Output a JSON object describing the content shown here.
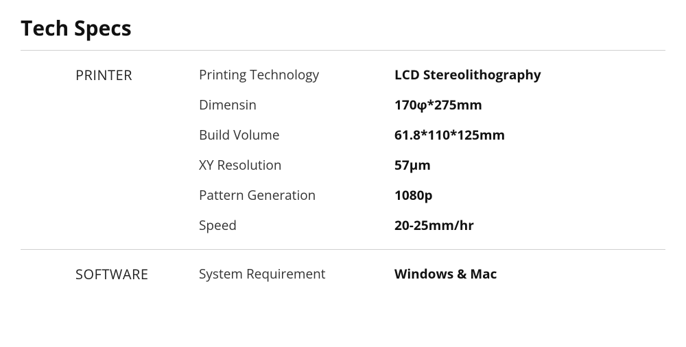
{
  "title": "Tech Specs",
  "colors": {
    "background": "#ffffff",
    "text": "#1a1a1a",
    "divider": "#d0d0d0",
    "heading": "#111111",
    "label": "#333333",
    "value": "#111111"
  },
  "typography": {
    "title_fontsize": 30,
    "title_weight": 700,
    "section_header_fontsize": 20,
    "section_header_weight": 500,
    "label_fontsize": 19,
    "label_weight": 400,
    "value_fontsize": 19,
    "value_weight": 700
  },
  "sections": [
    {
      "header": "PRINTER",
      "rows": [
        {
          "label": "Printing Technology",
          "value": "LCD Stereolithography"
        },
        {
          "label": "Dimensin",
          "value": "170φ*275mm"
        },
        {
          "label": "Build Volume",
          "value": "61.8*110*125mm"
        },
        {
          "label": "XY Resolution",
          "value": "57μm"
        },
        {
          "label": "Pattern Generation",
          "value": "1080p"
        },
        {
          "label": "Speed",
          "value": "20-25mm/hr"
        }
      ]
    },
    {
      "header": "SOFTWARE",
      "rows": [
        {
          "label": "System Requirement",
          "value": "Windows & Mac"
        }
      ]
    }
  ]
}
